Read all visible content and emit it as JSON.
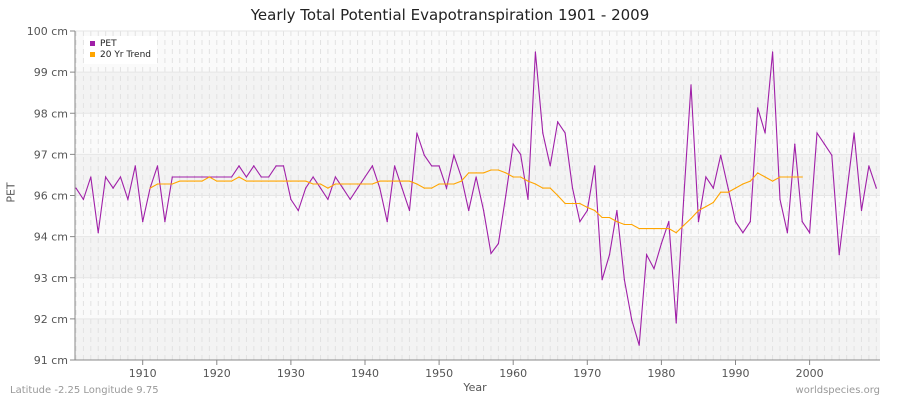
{
  "chart_data": {
    "type": "line",
    "title": "Yearly Total Potential Evapotranspiration 1901 - 2009",
    "xlabel": "Year",
    "ylabel": "PET",
    "xlim": [
      1901,
      2009
    ],
    "x_ticks": [
      1910,
      1920,
      1930,
      1940,
      1950,
      1960,
      1970,
      1980,
      1990,
      2000
    ],
    "y_ticks": [
      {
        "value": 100,
        "label": "100 cm"
      },
      {
        "value": 99,
        "label": "99 cm"
      },
      {
        "value": 98,
        "label": "98 cm"
      },
      {
        "value": 97,
        "label": "97 cm"
      },
      {
        "value": 96,
        "label": "96 cm"
      },
      {
        "value": 94,
        "label": "94 cm"
      },
      {
        "value": 93,
        "label": "93 cm"
      },
      {
        "value": 92,
        "label": "92 cm"
      },
      {
        "value": 91,
        "label": "91 cm"
      }
    ],
    "grid": true,
    "legend_position": "top-left",
    "series": [
      {
        "name": "PET",
        "color": "#a020a8",
        "x_start": 1901,
        "values": [
          96.18,
          95.81,
          96.45,
          94.19,
          96.45,
          96.18,
          96.45,
          95.81,
          96.72,
          94.73,
          96.18,
          96.72,
          94.73,
          96.45,
          96.45,
          96.45,
          96.45,
          96.45,
          96.45,
          96.45,
          96.45,
          96.45,
          96.72,
          96.45,
          96.72,
          96.45,
          96.45,
          96.72,
          96.72,
          95.81,
          95.27,
          96.18,
          96.45,
          96.18,
          95.81,
          96.45,
          96.18,
          95.81,
          96.18,
          96.45,
          96.72,
          96.18,
          94.73,
          96.72,
          96.18,
          95.27,
          97.52,
          96.98,
          96.72,
          96.72,
          96.18,
          96.98,
          96.45,
          95.27,
          96.45,
          95.27,
          93.59,
          93.83,
          96.0,
          97.25,
          97.0,
          95.81,
          99.49,
          97.52,
          96.72,
          97.79,
          97.52,
          96.18,
          94.73,
          95.27,
          96.72,
          92.95,
          93.56,
          95.27,
          92.95,
          91.97,
          91.36,
          93.56,
          93.22,
          93.83,
          94.73,
          91.9,
          95.76,
          98.69,
          94.73,
          96.45,
          96.18,
          96.98,
          96.18,
          94.73,
          94.19,
          94.73,
          98.13,
          97.52,
          99.49,
          95.81,
          94.19,
          97.25,
          94.73,
          94.19,
          97.52,
          97.25,
          96.98,
          93.56,
          96.06,
          97.52,
          95.27,
          96.72,
          96.18
        ]
      },
      {
        "name": "20 Yr Trend",
        "color": "#ffa500",
        "x_start": 1911,
        "values": [
          96.18,
          96.28,
          96.28,
          96.28,
          96.35,
          96.35,
          96.35,
          96.35,
          96.45,
          96.35,
          96.35,
          96.35,
          96.45,
          96.35,
          96.35,
          96.35,
          96.35,
          96.35,
          96.35,
          96.35,
          96.35,
          96.35,
          96.28,
          96.28,
          96.18,
          96.28,
          96.28,
          96.28,
          96.28,
          96.28,
          96.28,
          96.35,
          96.35,
          96.35,
          96.35,
          96.35,
          96.28,
          96.18,
          96.18,
          96.28,
          96.28,
          96.28,
          96.35,
          96.55,
          96.55,
          96.55,
          96.62,
          96.62,
          96.55,
          96.45,
          96.45,
          96.35,
          96.28,
          96.18,
          96.18,
          96.0,
          95.61,
          95.61,
          95.61,
          95.42,
          95.27,
          94.93,
          94.93,
          94.73,
          94.59,
          94.59,
          94.39,
          94.39,
          94.39,
          94.39,
          94.39,
          94.19,
          94.54,
          94.88,
          95.27,
          95.46,
          95.66,
          96.08,
          96.08,
          96.18,
          96.28,
          96.35,
          96.55,
          96.45,
          96.35,
          96.45,
          96.45,
          96.45,
          96.45
        ]
      }
    ]
  },
  "footer": {
    "location": "Latitude -2.25 Longitude 9.75",
    "source": "worldspecies.org"
  }
}
